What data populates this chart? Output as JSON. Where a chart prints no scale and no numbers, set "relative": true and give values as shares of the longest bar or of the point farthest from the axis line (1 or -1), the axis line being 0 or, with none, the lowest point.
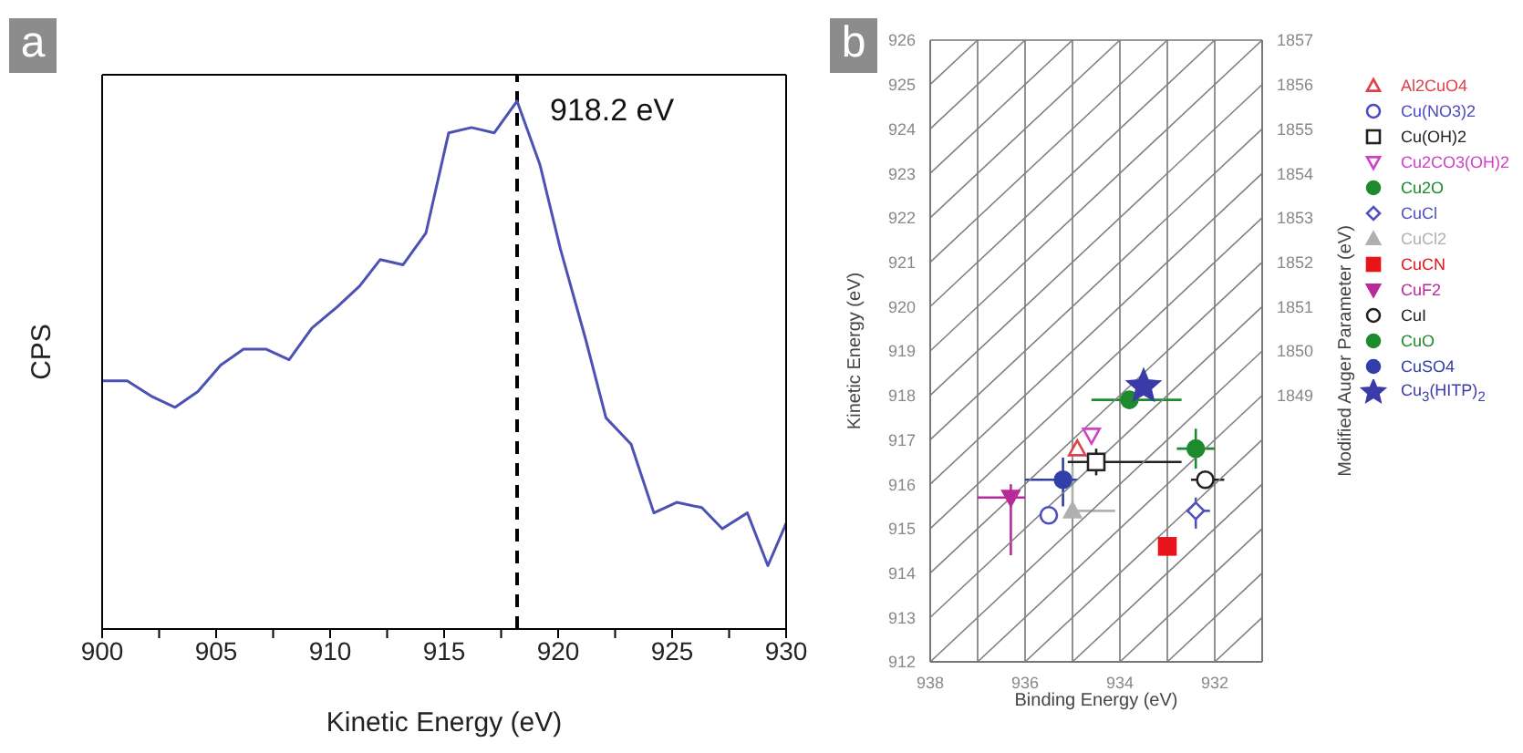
{
  "chart_data": [
    {
      "type": "line",
      "xlabel": "Kinetic Energy (eV)",
      "ylabel": "CPS",
      "annotations": [
        "a"
      ],
      "relative": true,
      "x": [
        900,
        901.1,
        902.2,
        903.2,
        904.2,
        905.2,
        906.2,
        907.2,
        908.2,
        909.2,
        910.3,
        911.3,
        912.2,
        913.2,
        914.2,
        915.2,
        916.2,
        917.2,
        918.2,
        919.2,
        920.1,
        921.2,
        922.1,
        923.2,
        924.2,
        925.2,
        926.3,
        927.2,
        928.3,
        929.2,
        930
      ],
      "series": [
        {
          "color": "#4b52b4",
          "values": [
            0.47,
            0.47,
            0.44,
            0.42,
            0.45,
            0.5,
            0.53,
            0.53,
            0.51,
            0.57,
            0.61,
            0.65,
            0.7,
            0.69,
            0.75,
            0.94,
            0.95,
            0.94,
            1,
            0.88,
            0.72,
            0.55,
            0.4,
            0.35,
            0.22,
            0.24,
            0.23,
            0.19,
            0.22,
            0.12,
            0.2
          ]
        }
      ],
      "xlim": [
        900,
        930
      ],
      "xticks": [
        900,
        {
          "value": 902.5,
          "label": null
        },
        905,
        {
          "value": 907.5,
          "label": null
        },
        910,
        {
          "value": 912.5,
          "label": null
        },
        915,
        {
          "value": 917.5,
          "label": null
        },
        920,
        {
          "value": 922.5,
          "label": null
        },
        925,
        {
          "value": 927.5,
          "label": null
        },
        930
      ],
      "ref_lines": [
        {
          "axis": "x",
          "value": 918.2,
          "label": "918.2 eV",
          "color": "#000000",
          "line_style": "dashed"
        }
      ]
    },
    {
      "type": "scatter",
      "xlabel": "Binding Energy (eV)",
      "ylabel": "Kinetic Energy (eV)",
      "y2label": "Modified Auger Parameter (eV)",
      "annotations": [
        "b"
      ],
      "xlim": [
        938,
        931
      ],
      "xticks": [
        938,
        {
          "value": 937,
          "label": null
        },
        936,
        {
          "value": 935,
          "label": null
        },
        934,
        {
          "value": 933,
          "label": null
        },
        932,
        {
          "value": 931,
          "label": null
        }
      ],
      "ylim": [
        912,
        926
      ],
      "yticks": [
        912,
        913,
        914,
        915,
        916,
        917,
        918,
        919,
        920,
        921,
        922,
        923,
        924,
        925,
        926
      ],
      "y2lim": [
        1843,
        1857
      ],
      "y2ticks": [
        1849,
        1850,
        1851,
        1852,
        1853,
        1854,
        1855,
        1856,
        1857
      ],
      "grid": true,
      "legend": "right",
      "series": [
        {
          "name": "Al2CuO4",
          "color": "#e0404a",
          "marker": "triangle-open",
          "x": [
            934.9
          ],
          "values": [
            916.8
          ]
        },
        {
          "name": "Cu(NO3)2",
          "color": "#4c4cc0",
          "marker": "circle-open",
          "x": [
            935.5
          ],
          "values": [
            915.3
          ]
        },
        {
          "name": "Cu(OH)2",
          "color": "#222222",
          "marker": "square-open",
          "x": [
            934.5
          ],
          "values": [
            916.5
          ],
          "xerrors": [
            [
              932.7,
              935.1
            ]
          ],
          "errors": [
            0.3
          ]
        },
        {
          "name": "Cu2CO3(OH)2",
          "color": "#d040c8",
          "marker": "triangle-down-open",
          "x": [
            934.6
          ],
          "values": [
            917.1
          ]
        },
        {
          "name": "Cu2O",
          "color": "#1e8a2e",
          "marker": "circle",
          "x": [
            932.4
          ],
          "values": [
            916.8
          ],
          "xerrors": [
            0.4
          ],
          "errors": [
            0.45
          ]
        },
        {
          "name": "CuCl",
          "color": "#5050c0",
          "marker": "diamond-open",
          "x": [
            932.4
          ],
          "values": [
            915.4
          ],
          "xerrors": [
            [
              932.1,
              932.6
            ]
          ],
          "errors": [
            [
              915.0,
              915.7
            ]
          ]
        },
        {
          "name": "CuCl2",
          "color": "#b0b0b0",
          "marker": "triangle",
          "x": [
            935.0
          ],
          "values": [
            915.4
          ],
          "xerrors": [
            [
              934.1,
              935.0
            ]
          ],
          "errors": [
            [
              915.4,
              916.4
            ]
          ]
        },
        {
          "name": "CuCN",
          "color": "#e8141c",
          "marker": "square",
          "x": [
            933.0
          ],
          "values": [
            914.6
          ]
        },
        {
          "name": "CuF2",
          "color": "#b82a9a",
          "marker": "triangle-down",
          "x": [
            936.3
          ],
          "values": [
            915.7
          ],
          "xerrors": [
            [
              936.0,
              937.0
            ]
          ],
          "errors": [
            [
              914.4,
              916.0
            ]
          ]
        },
        {
          "name": "CuI",
          "color": "#222222",
          "marker": "circle-open",
          "x": [
            932.2
          ],
          "values": [
            916.1
          ],
          "xerrors": [
            [
              931.8,
              932.5
            ]
          ]
        },
        {
          "name": "CuO",
          "color": "#1e8a2e",
          "marker": "circle",
          "x": [
            933.8
          ],
          "values": [
            917.9
          ],
          "xerrors": [
            [
              932.7,
              934.6
            ]
          ],
          "errors": [
            0.2
          ]
        },
        {
          "name": "CuSO4",
          "color": "#3040a8",
          "marker": "circle",
          "x": [
            935.2
          ],
          "values": [
            916.1
          ],
          "xerrors": [
            [
              934.9,
              936.0
            ]
          ],
          "errors": [
            [
              915.5,
              916.6
            ]
          ]
        },
        {
          "name": "Cu$_{3}$(HITP)$_{2}$",
          "color": "#3a3aa8",
          "marker": "star",
          "x": [
            933.5
          ],
          "values": [
            918.2
          ]
        },
        {
          "type": "line",
          "color": "#808080",
          "x": [
            931,
            932
          ],
          "values": [
            913,
            912
          ]
        },
        {
          "type": "line",
          "color": "#808080",
          "x": [
            931,
            933
          ],
          "values": [
            914,
            912
          ]
        },
        {
          "type": "line",
          "color": "#808080",
          "x": [
            931,
            934
          ],
          "values": [
            915,
            912
          ]
        },
        {
          "type": "line",
          "color": "#808080",
          "x": [
            931,
            935
          ],
          "values": [
            916,
            912
          ]
        },
        {
          "type": "line",
          "color": "#808080",
          "x": [
            931,
            936
          ],
          "values": [
            917,
            912
          ]
        },
        {
          "type": "line",
          "color": "#808080",
          "x": [
            931,
            937
          ],
          "values": [
            918,
            912
          ]
        },
        {
          "type": "line",
          "color": "#808080",
          "x": [
            931,
            938
          ],
          "values": [
            919,
            912
          ]
        },
        {
          "type": "line",
          "color": "#808080",
          "x": [
            931,
            938
          ],
          "values": [
            920,
            913
          ]
        },
        {
          "type": "line",
          "color": "#808080",
          "x": [
            931,
            938
          ],
          "values": [
            921,
            914
          ]
        },
        {
          "type": "line",
          "color": "#808080",
          "x": [
            931,
            938
          ],
          "values": [
            922,
            915
          ]
        },
        {
          "type": "line",
          "color": "#808080",
          "x": [
            931,
            938
          ],
          "values": [
            923,
            916
          ]
        },
        {
          "type": "line",
          "color": "#808080",
          "x": [
            931,
            938
          ],
          "values": [
            924,
            917
          ]
        },
        {
          "type": "line",
          "color": "#808080",
          "x": [
            931,
            938
          ],
          "values": [
            925,
            918
          ]
        },
        {
          "type": "line",
          "color": "#808080",
          "x": [
            931,
            938
          ],
          "values": [
            926,
            919
          ]
        },
        {
          "type": "line",
          "color": "#808080",
          "x": [
            932,
            938
          ],
          "values": [
            926,
            920
          ]
        },
        {
          "type": "line",
          "color": "#808080",
          "x": [
            933,
            938
          ],
          "values": [
            926,
            921
          ]
        },
        {
          "type": "line",
          "color": "#808080",
          "x": [
            934,
            938
          ],
          "values": [
            926,
            922
          ]
        },
        {
          "type": "line",
          "color": "#808080",
          "x": [
            935,
            938
          ],
          "values": [
            926,
            923
          ]
        },
        {
          "type": "line",
          "color": "#808080",
          "x": [
            936,
            938
          ],
          "values": [
            926,
            924
          ]
        },
        {
          "type": "line",
          "color": "#808080",
          "x": [
            937,
            938
          ],
          "values": [
            926,
            925
          ]
        }
      ]
    }
  ]
}
